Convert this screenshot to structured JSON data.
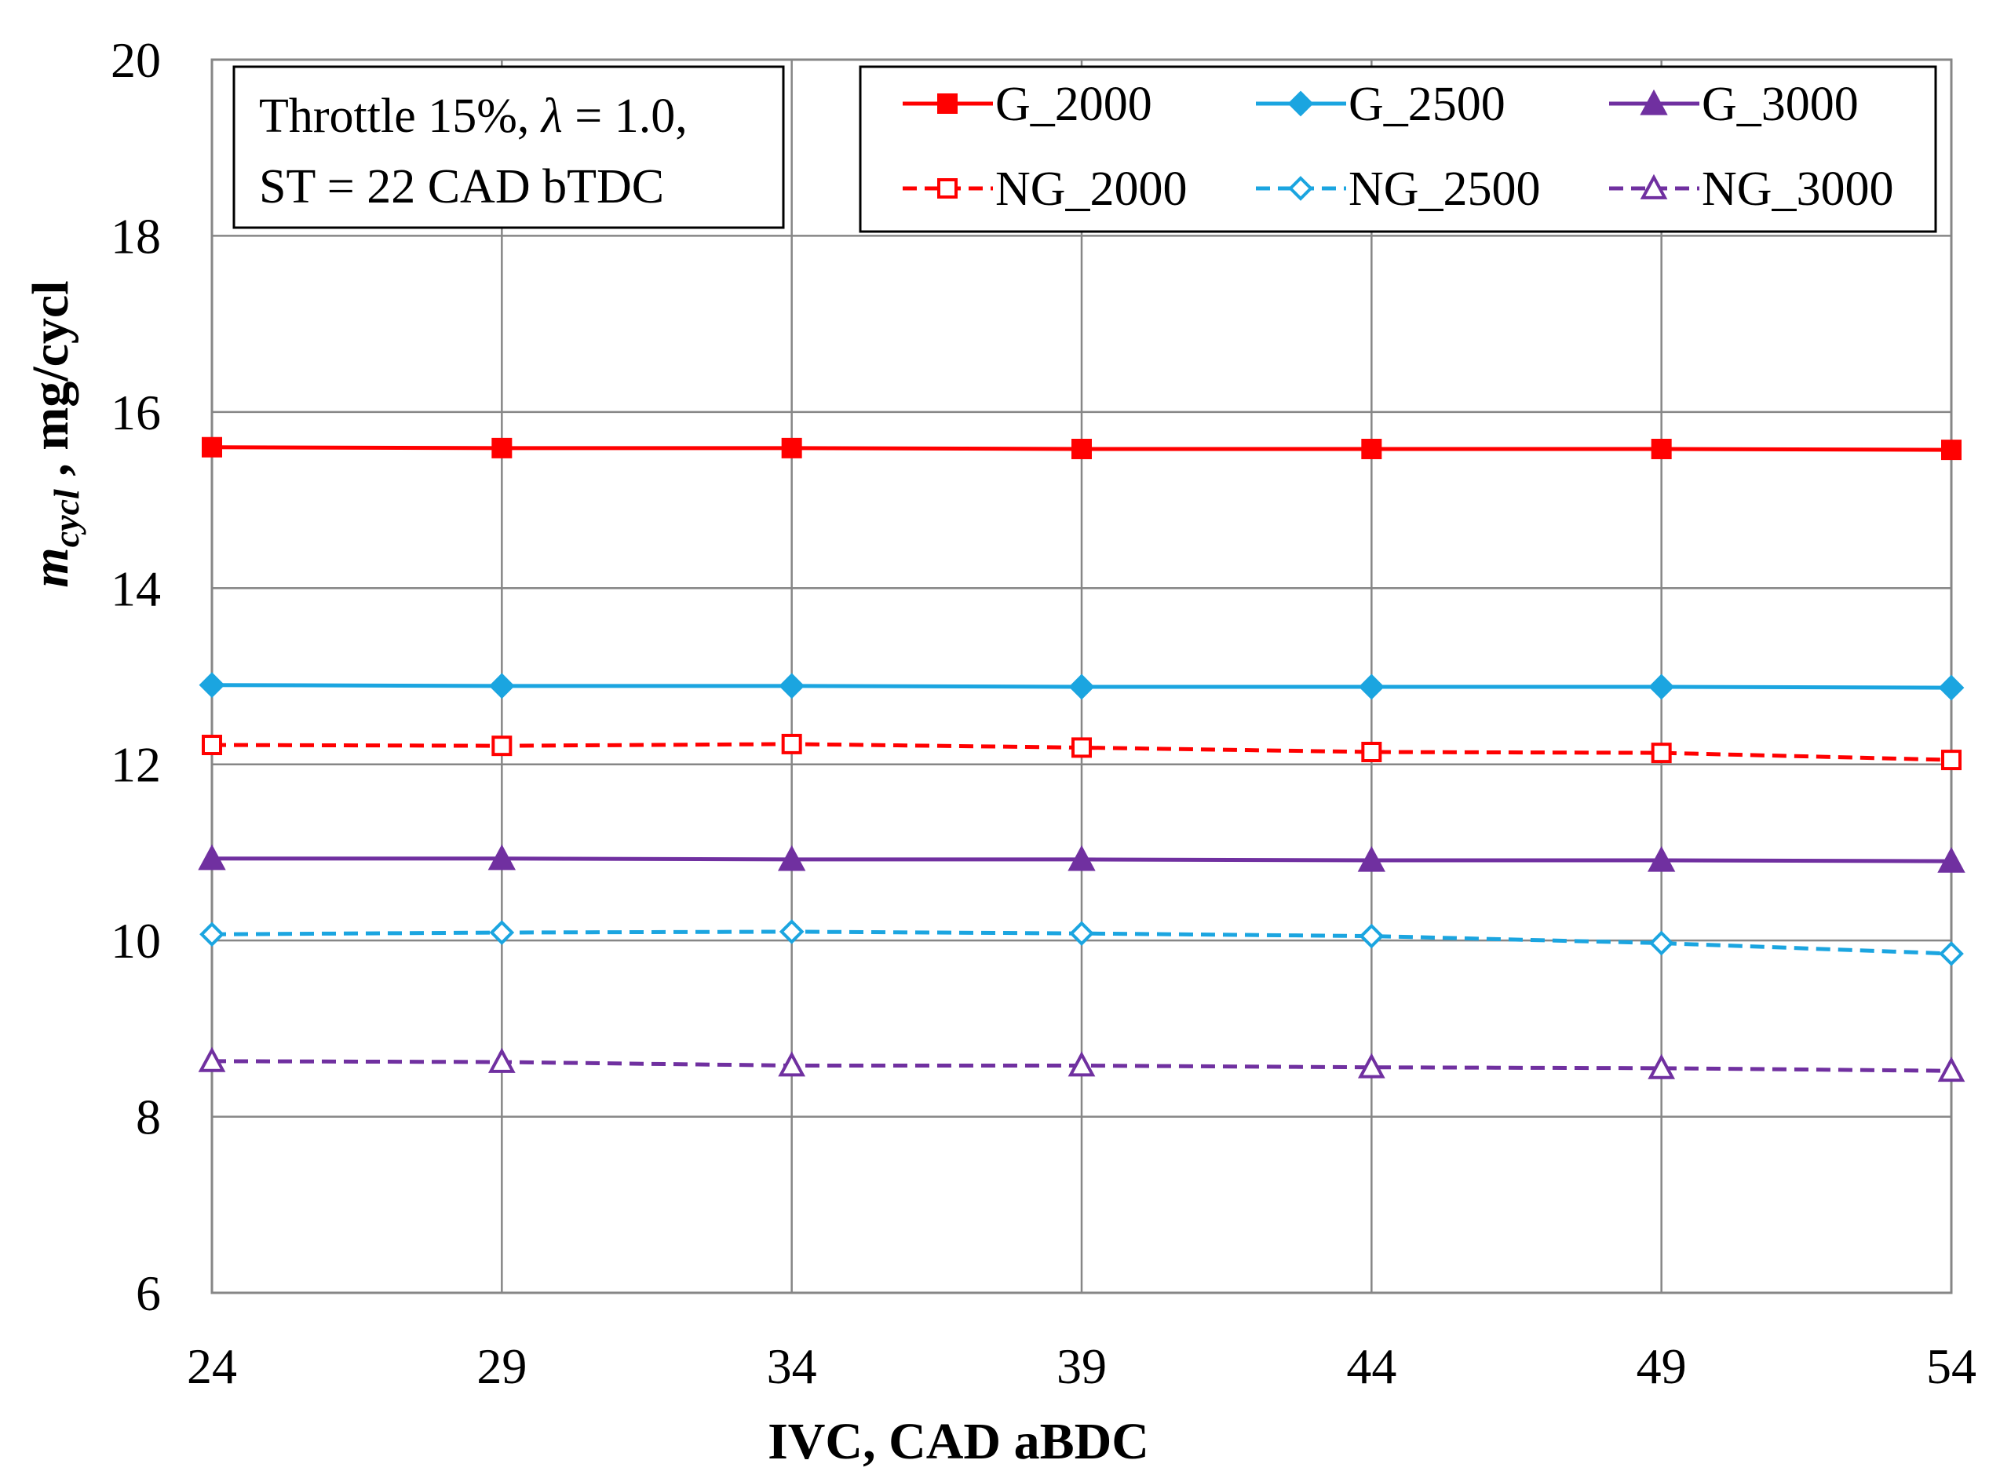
{
  "chart_data": {
    "type": "line",
    "title": "",
    "xlabel": "IVC, CAD aBDC",
    "ylabel_main": "m",
    "ylabel_sub": "cycl",
    "ylabel_rest": " , mg/cycl",
    "x": [
      24,
      29,
      34,
      39,
      44,
      49,
      54
    ],
    "x_tick_labels": [
      "24",
      "29",
      "34",
      "39",
      "44",
      "49",
      "54"
    ],
    "xlim": [
      24,
      54
    ],
    "ylim": [
      6,
      20
    ],
    "y_ticks": [
      6,
      8,
      10,
      12,
      14,
      16,
      18,
      20
    ],
    "y_tick_labels": [
      "6",
      "8",
      "10",
      "12",
      "14",
      "16",
      "18",
      "20"
    ],
    "grid": true,
    "legend_position": "top-right",
    "annotation": {
      "line1_prefix": "Throttle 15%, ",
      "line1_lambda": "λ",
      "line1_suffix": " = 1.0,",
      "line2": "ST = 22 CAD bTDC"
    },
    "series": [
      {
        "name": "G_2000",
        "color": "#ff0000",
        "dash": "solid",
        "marker": "square-filled",
        "values": [
          15.6,
          15.59,
          15.59,
          15.58,
          15.58,
          15.58,
          15.57
        ]
      },
      {
        "name": "G_2500",
        "color": "#1ba5e0",
        "dash": "solid",
        "marker": "diamond-filled",
        "values": [
          12.9,
          12.89,
          12.89,
          12.88,
          12.88,
          12.88,
          12.87
        ]
      },
      {
        "name": "G_3000",
        "color": "#7030a0",
        "dash": "solid",
        "marker": "triangle-filled",
        "values": [
          10.93,
          10.93,
          10.92,
          10.92,
          10.91,
          10.91,
          10.9
        ]
      },
      {
        "name": "NG_2000",
        "color": "#ff0000",
        "dash": "dashed",
        "marker": "square-open",
        "values": [
          12.22,
          12.21,
          12.23,
          12.19,
          12.14,
          12.13,
          12.05
        ]
      },
      {
        "name": "NG_2500",
        "color": "#1ba5e0",
        "dash": "dashed",
        "marker": "diamond-open",
        "values": [
          10.07,
          10.09,
          10.1,
          10.08,
          10.05,
          9.97,
          9.85
        ]
      },
      {
        "name": "NG_3000",
        "color": "#7030a0",
        "dash": "dashed",
        "marker": "triangle-open",
        "values": [
          8.63,
          8.62,
          8.58,
          8.58,
          8.56,
          8.55,
          8.52
        ]
      }
    ]
  }
}
